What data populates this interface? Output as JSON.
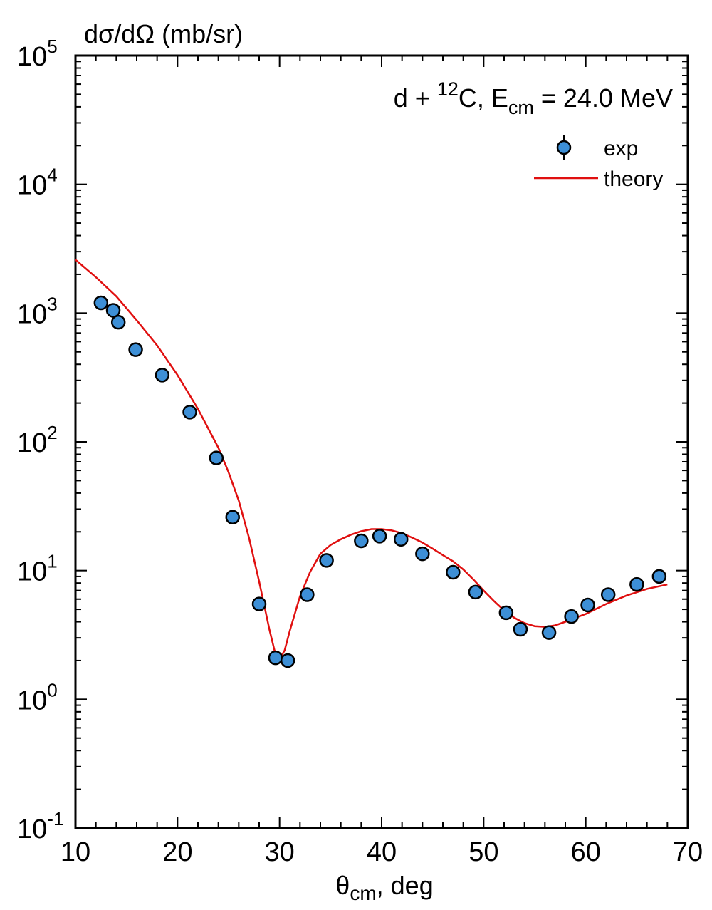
{
  "chart_data": {
    "type": "scatter",
    "ylabel": "dσ/dΩ (mb/sr)",
    "xlabel": {
      "base": "θ",
      "sub": "cm",
      "rest": ", deg"
    },
    "annotation": {
      "pre": "d + ",
      "sup": "12",
      "mid": "C, E",
      "sub": "cm",
      "post": " = 24.0 MeV"
    },
    "x_ticks": [
      "10",
      "20",
      "30",
      "40",
      "50",
      "60",
      "70"
    ],
    "y_ticks": [
      {
        "base": "10",
        "exp": "-1"
      },
      {
        "base": "10",
        "exp": "0"
      },
      {
        "base": "10",
        "exp": "1"
      },
      {
        "base": "10",
        "exp": "2"
      },
      {
        "base": "10",
        "exp": "3"
      },
      {
        "base": "10",
        "exp": "4"
      },
      {
        "base": "10",
        "exp": "5"
      }
    ],
    "xlim": [
      10,
      70
    ],
    "ylim": [
      0.1,
      100000
    ],
    "yscale": "log",
    "grid": false,
    "legend_position": "top-right",
    "series": [
      {
        "name": "exp",
        "kind": "points",
        "color": "#3d8fd6",
        "x": [
          12.5,
          13.7,
          14.2,
          15.9,
          18.5,
          21.2,
          23.8,
          25.4,
          28.0,
          29.6,
          30.8,
          32.7,
          34.6,
          38.0,
          39.8,
          41.9,
          44.0,
          47.0,
          49.2,
          52.2,
          53.6,
          56.4,
          58.6,
          60.2,
          62.2,
          65.0,
          67.2
        ],
        "y": [
          1200,
          1050,
          850,
          520,
          330,
          170,
          75,
          26,
          5.5,
          2.1,
          2.0,
          6.5,
          12.0,
          17.0,
          18.5,
          17.5,
          13.5,
          9.7,
          6.8,
          4.7,
          3.5,
          3.3,
          4.4,
          5.4,
          6.5,
          7.8,
          9.0
        ]
      },
      {
        "name": "theory",
        "kind": "line",
        "color": "#e01010",
        "x": [
          10,
          12,
          14,
          16,
          18,
          20,
          22,
          24,
          25,
          26,
          27,
          28,
          29,
          29.5,
          30,
          30.5,
          31,
          32,
          33,
          34,
          35,
          36,
          37,
          38,
          39,
          40,
          41,
          42,
          43,
          44,
          45,
          46,
          47,
          48,
          49,
          50,
          51,
          52,
          53,
          54,
          55,
          56,
          57,
          58,
          59,
          60,
          62,
          64,
          66,
          68
        ],
        "y": [
          2600,
          1900,
          1350,
          880,
          560,
          330,
          180,
          90,
          58,
          35,
          18,
          8.2,
          3.5,
          2.4,
          2.05,
          2.4,
          3.4,
          6.3,
          9.8,
          13.5,
          15.8,
          17.5,
          19.0,
          20.2,
          21.0,
          21.0,
          20.5,
          19.5,
          18.0,
          16.5,
          14.8,
          13.2,
          11.8,
          10.2,
          8.5,
          7.0,
          5.8,
          4.9,
          4.3,
          3.9,
          3.7,
          3.65,
          3.75,
          4.0,
          4.3,
          4.6,
          5.5,
          6.4,
          7.2,
          7.8
        ]
      }
    ]
  }
}
